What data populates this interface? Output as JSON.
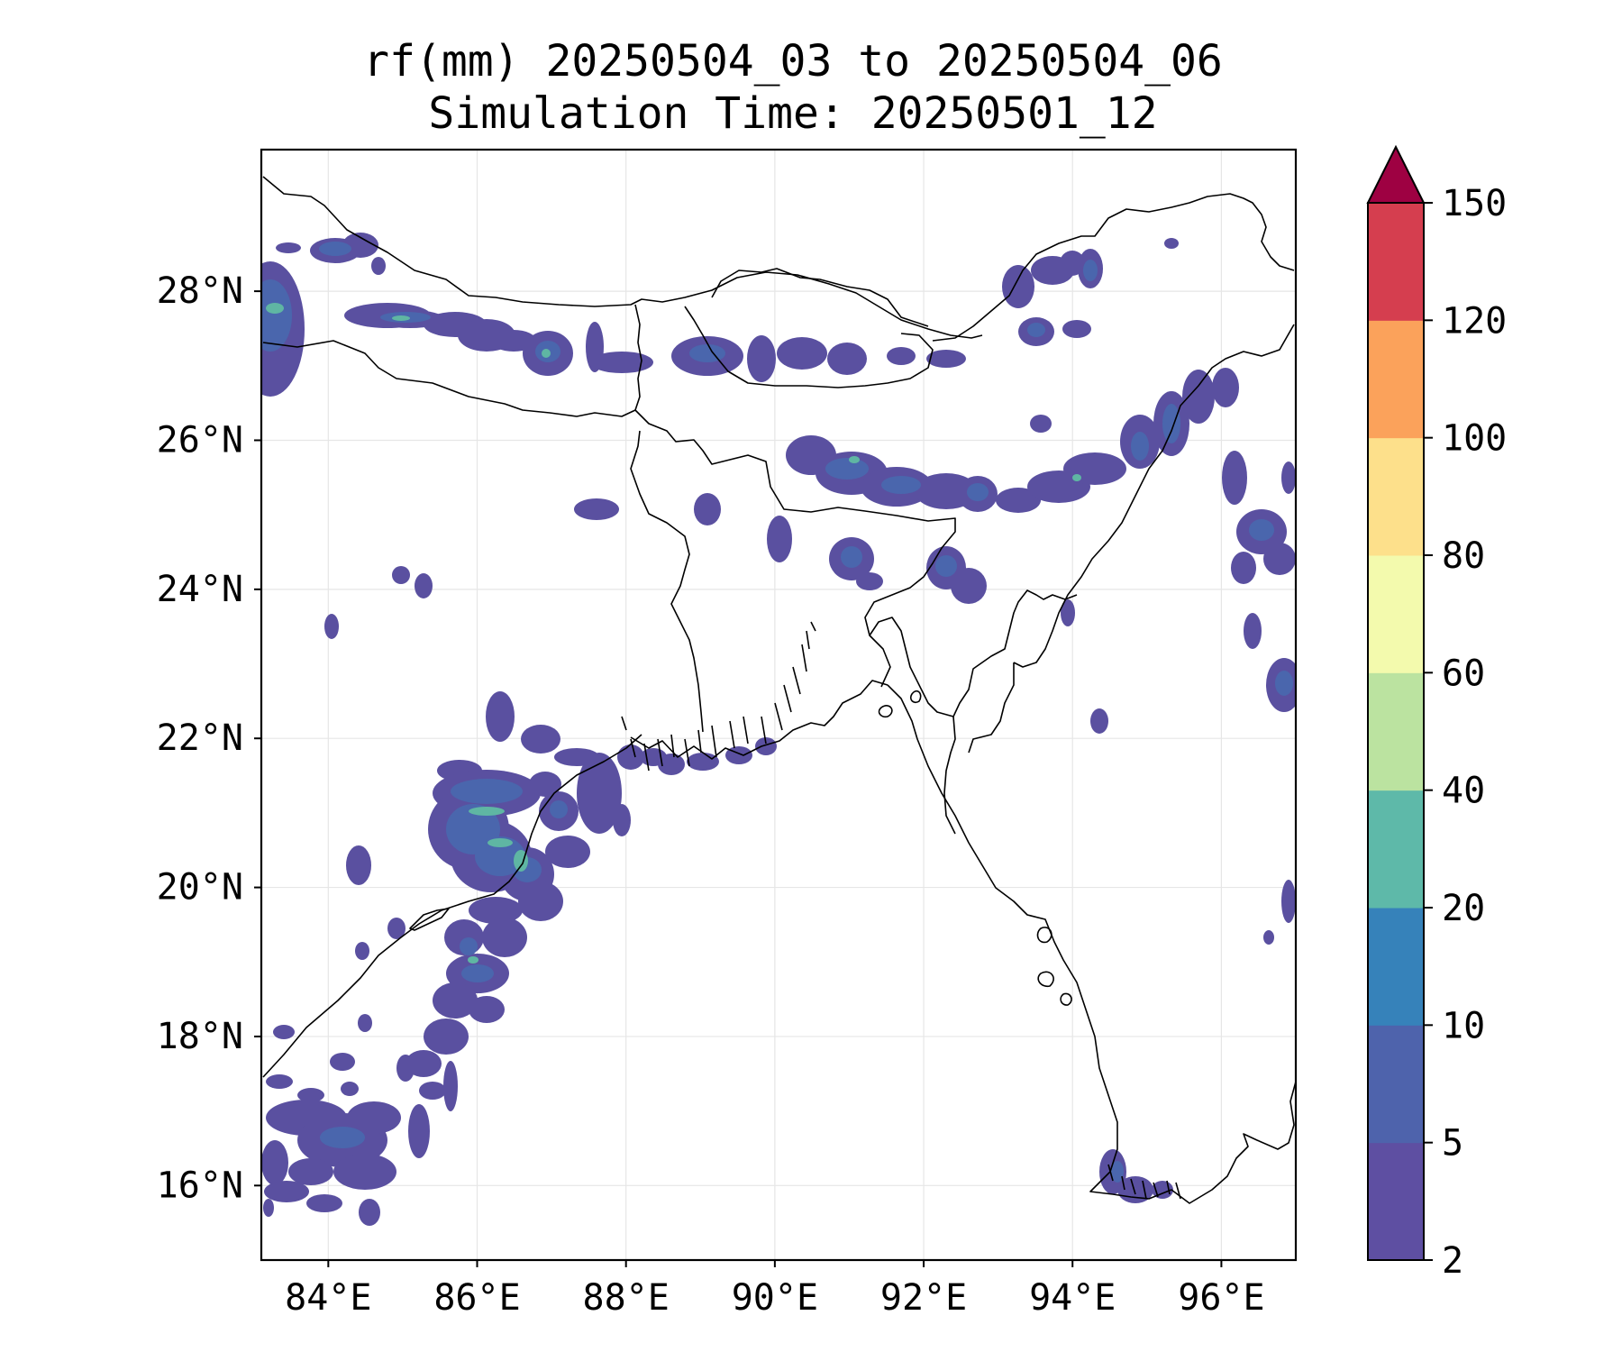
{
  "title": {
    "line1": "rf(mm) 20250504_03 to 20250504_06",
    "line2": "Simulation Time: 20250501_12"
  },
  "map": {
    "lon_range": [
      83.1,
      97.0
    ],
    "lat_range": [
      15.0,
      29.9
    ],
    "lon_ticks": [
      84,
      86,
      88,
      90,
      92,
      94,
      96
    ],
    "lat_ticks": [
      16,
      18,
      20,
      22,
      24,
      26,
      28
    ],
    "lon_tick_labels": [
      "84°E",
      "86°E",
      "88°E",
      "90°E",
      "92°E",
      "94°E",
      "96°E"
    ],
    "lat_tick_labels": [
      "16°N",
      "18°N",
      "20°N",
      "22°N",
      "24°N",
      "26°N",
      "28°N"
    ],
    "grid": true
  },
  "colorbar": {
    "levels": [
      2,
      5,
      10,
      20,
      40,
      60,
      80,
      100,
      120,
      150
    ],
    "tick_labels": [
      "2",
      "5",
      "10",
      "20",
      "40",
      "60",
      "80",
      "100",
      "120",
      "150"
    ],
    "colors": [
      "#5e4fa2",
      "#4e63ac",
      "#3682ba",
      "#5eb9a9",
      "#bbe3a0",
      "#f3faad",
      "#fde08b",
      "#fba25b",
      "#d53e4f"
    ],
    "extend_color": "#9e0142",
    "extend": "max"
  },
  "rain_color_light": "#5a50a0",
  "rain_color_mid": "#4a66ad",
  "rain_color_high": "#5fb6a3"
}
